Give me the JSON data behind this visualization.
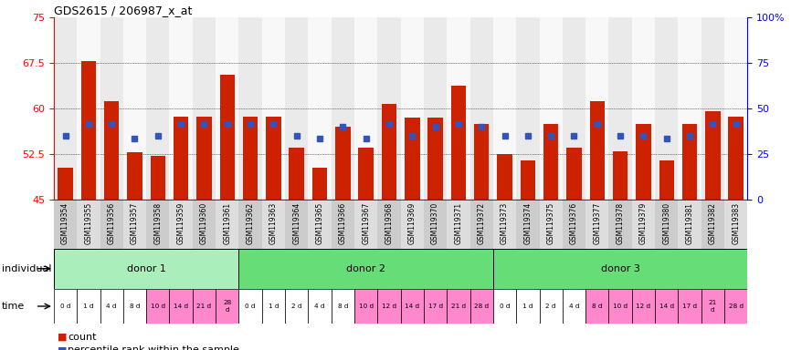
{
  "title": "GDS2615 / 206987_x_at",
  "gsm_labels": [
    "GSM119354",
    "GSM119355",
    "GSM119356",
    "GSM119357",
    "GSM119358",
    "GSM119359",
    "GSM119360",
    "GSM119361",
    "GSM119362",
    "GSM119363",
    "GSM119364",
    "GSM119365",
    "GSM119366",
    "GSM119367",
    "GSM119368",
    "GSM119369",
    "GSM119370",
    "GSM119371",
    "GSM119372",
    "GSM119373",
    "GSM119374",
    "GSM119375",
    "GSM119376",
    "GSM119377",
    "GSM119378",
    "GSM119379",
    "GSM119380",
    "GSM119381",
    "GSM119382",
    "GSM119383"
  ],
  "bar_values": [
    50.2,
    67.8,
    61.2,
    52.8,
    52.2,
    58.7,
    58.7,
    65.5,
    58.7,
    58.7,
    53.5,
    50.2,
    57.0,
    53.5,
    60.8,
    58.5,
    58.5,
    63.8,
    57.5,
    52.5,
    51.5,
    57.5,
    53.5,
    61.2,
    53.0,
    57.5,
    51.5,
    57.5,
    59.5,
    58.7
  ],
  "percentile_values": [
    55.5,
    57.5,
    57.5,
    55.0,
    55.5,
    57.5,
    57.5,
    57.5,
    57.5,
    57.5,
    55.5,
    55.0,
    57.0,
    55.0,
    57.5,
    55.5,
    57.0,
    57.5,
    57.0,
    55.5,
    55.5,
    55.5,
    55.5,
    57.5,
    55.5,
    55.5,
    55.0,
    55.5,
    57.5,
    57.5
  ],
  "ymin": 45,
  "ymax": 75,
  "yticks": [
    45,
    52.5,
    60,
    67.5,
    75
  ],
  "ytick_labels": [
    "45",
    "52.5",
    "60",
    "67.5",
    "75"
  ],
  "right_ytick_labels": [
    "0",
    "25",
    "50",
    "75",
    "100%"
  ],
  "bar_color": "#CC2200",
  "percentile_color": "#3355BB",
  "donor1_color": "#AAEEBB",
  "donor2_color": "#66DD77",
  "donor3_color": "#66DD77",
  "time_color_white": "#FFFFFF",
  "time_color_pink": "#FF88CC",
  "col_bg_even": "#CCCCCC",
  "col_bg_odd": "#EEEEEE",
  "time_labels_donor1": [
    "0 d",
    "1 d",
    "4 d",
    "8 d",
    "10 d",
    "14 d",
    "21 d",
    "28\nd"
  ],
  "time_labels_donor2": [
    "0 d",
    "1 d",
    "2 d",
    "4 d",
    "8 d",
    "10 d",
    "12 d",
    "14 d",
    "17 d",
    "21 d",
    "28 d"
  ],
  "time_labels_donor3": [
    "0 d",
    "1 d",
    "2 d",
    "4 d",
    "8 d",
    "10 d",
    "12 d",
    "14 d",
    "17 d",
    "21\nd",
    "28 d"
  ],
  "time_pink_donor1": [
    4,
    5,
    6,
    7
  ],
  "time_pink_donor2": [
    5,
    6,
    7,
    8,
    9,
    10
  ],
  "time_pink_donor3": [
    4,
    5,
    6,
    7,
    8,
    9,
    10
  ],
  "n_donor1": 8,
  "n_donor2": 11,
  "n_donor3": 11
}
